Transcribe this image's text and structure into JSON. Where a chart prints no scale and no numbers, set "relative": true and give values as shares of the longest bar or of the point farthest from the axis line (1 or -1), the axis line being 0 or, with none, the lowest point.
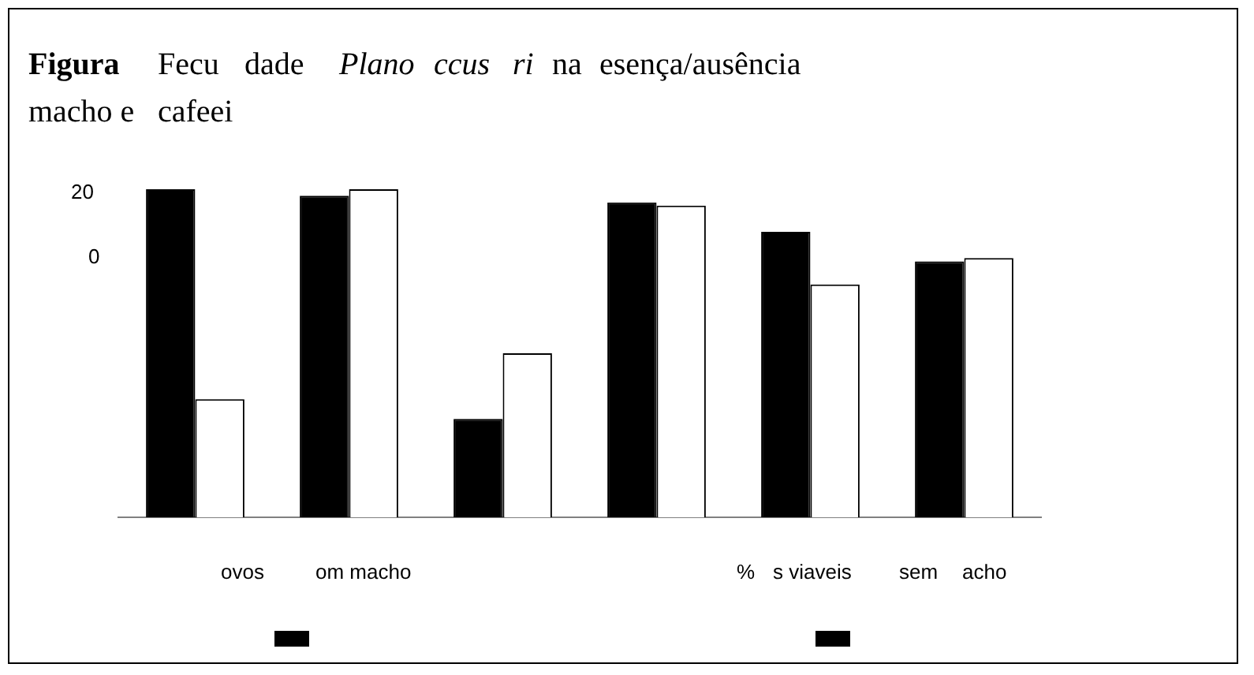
{
  "chart_data": {
    "type": "bar",
    "relative": true,
    "categories": [
      null,
      null,
      null,
      null,
      null,
      null
    ],
    "series": [
      {
        "color": "#000000",
        "values": [
          1,
          0.98,
          0.3,
          0.96,
          0.87,
          0.78
        ]
      },
      {
        "color": "#ffffff",
        "values": [
          0.36,
          1,
          0.5,
          0.95,
          0.71,
          0.79
        ]
      }
    ],
    "annotations": [
      "20",
      "0",
      "ovos",
      "om macho",
      "%",
      "s viaveis",
      "sem",
      "acho",
      "Figura",
      "Fecu",
      "dade",
      "Plano",
      "ccus",
      "ri",
      "na",
      "esença/ausência",
      "macho e",
      "cafeei"
    ]
  }
}
